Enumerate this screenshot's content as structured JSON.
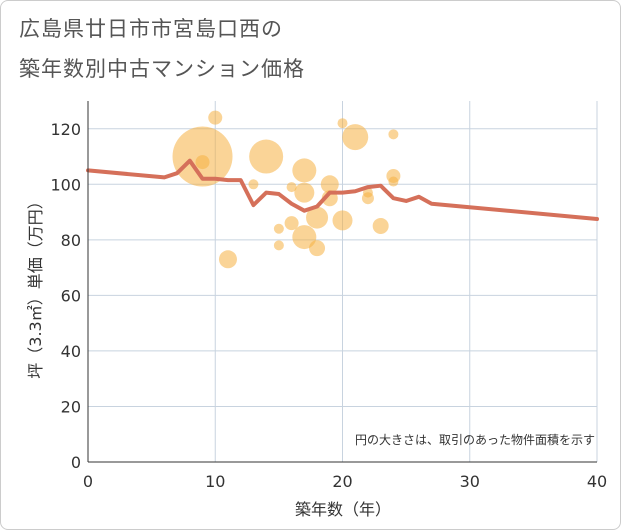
{
  "chart_data": {
    "type": "scatter",
    "title_lines": [
      "広島県廿日市市宮島口西の",
      "築年数別中古マンション価格"
    ],
    "xlabel": "築年数（年）",
    "ylabel": "坪（3.3㎡）単価（万円）",
    "xlim": [
      0,
      40
    ],
    "ylim": [
      0,
      130
    ],
    "x_ticks": [
      0,
      10,
      20,
      30,
      40
    ],
    "y_ticks": [
      0,
      20,
      40,
      60,
      80,
      100,
      120
    ],
    "grid": true,
    "note": "円の大きさは、取引のあった物件面積を示す",
    "colors": {
      "bubble": "#f5b041",
      "line": "#d5705a",
      "grid": "#c8d3df",
      "axis": "#333333"
    },
    "bubbles": [
      {
        "x": 9,
        "y": 110,
        "size": 30
      },
      {
        "x": 14,
        "y": 110,
        "size": 17
      },
      {
        "x": 10,
        "y": 124,
        "size": 7
      },
      {
        "x": 9,
        "y": 108,
        "size": 7
      },
      {
        "x": 11,
        "y": 73,
        "size": 9
      },
      {
        "x": 13,
        "y": 100,
        "size": 5
      },
      {
        "x": 15,
        "y": 84,
        "size": 5
      },
      {
        "x": 15,
        "y": 78,
        "size": 5
      },
      {
        "x": 16,
        "y": 99,
        "size": 5
      },
      {
        "x": 16,
        "y": 86,
        "size": 7
      },
      {
        "x": 17,
        "y": 105,
        "size": 12
      },
      {
        "x": 17,
        "y": 97,
        "size": 10
      },
      {
        "x": 17,
        "y": 81,
        "size": 12
      },
      {
        "x": 18,
        "y": 88,
        "size": 11
      },
      {
        "x": 18,
        "y": 77,
        "size": 8
      },
      {
        "x": 19,
        "y": 100,
        "size": 9
      },
      {
        "x": 19,
        "y": 95,
        "size": 8
      },
      {
        "x": 20,
        "y": 122,
        "size": 5
      },
      {
        "x": 20,
        "y": 87,
        "size": 10
      },
      {
        "x": 21,
        "y": 117,
        "size": 13
      },
      {
        "x": 22,
        "y": 97,
        "size": 5
      },
      {
        "x": 22,
        "y": 95,
        "size": 6
      },
      {
        "x": 23,
        "y": 85,
        "size": 8
      },
      {
        "x": 24,
        "y": 118,
        "size": 5
      },
      {
        "x": 24,
        "y": 103,
        "size": 7
      },
      {
        "x": 24,
        "y": 101,
        "size": 5
      }
    ],
    "trend": {
      "x": [
        0,
        6,
        7,
        8,
        9,
        10,
        11,
        12,
        13,
        14,
        15,
        16,
        17,
        18,
        19,
        20,
        21,
        22,
        23,
        24,
        25,
        26,
        27,
        40
      ],
      "y": [
        105,
        102.5,
        104,
        108.5,
        102,
        102,
        101.5,
        101.5,
        92.5,
        97,
        96.5,
        93,
        90.5,
        92,
        97,
        97,
        97.5,
        99,
        99.5,
        95,
        94,
        95.5,
        93,
        87.5
      ]
    }
  }
}
